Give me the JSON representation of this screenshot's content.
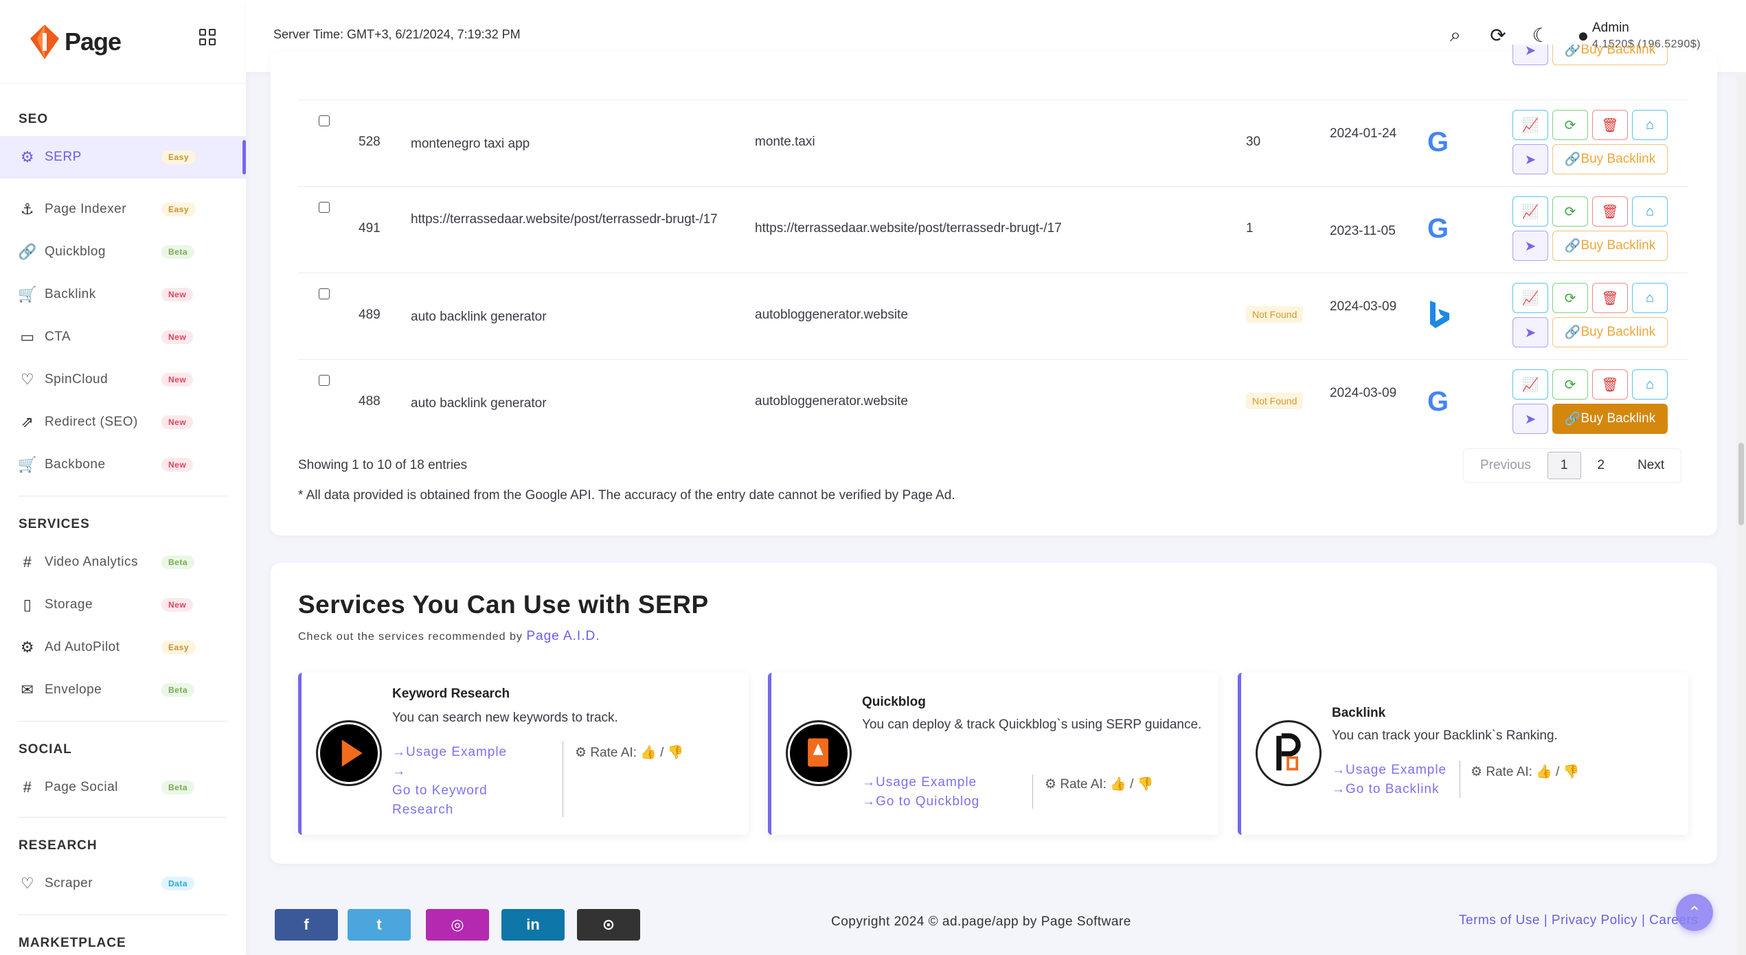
{
  "brand": {
    "name": "Page"
  },
  "header": {
    "server_time": "Server Time: GMT+3, 6/21/2024, 7:19:32 PM",
    "user": "Admin",
    "balance": "4.1520$ (196.5290$)"
  },
  "sidebar": {
    "seo_title": "SEO",
    "seo": [
      {
        "label": "SERP",
        "badge": "Easy"
      },
      {
        "label": "Page Indexer",
        "badge": "Easy"
      },
      {
        "label": "Quickblog",
        "badge": "Beta"
      },
      {
        "label": "Backlink",
        "badge": "New"
      },
      {
        "label": "CTA",
        "badge": "New"
      },
      {
        "label": "SpinCloud",
        "badge": "New"
      },
      {
        "label": "Redirect (SEO)",
        "badge": "New"
      },
      {
        "label": "Backbone",
        "badge": "New"
      }
    ],
    "services_title": "SERVICES",
    "services": [
      {
        "label": "Video Analytics",
        "badge": "Beta"
      },
      {
        "label": "Storage",
        "badge": "New"
      },
      {
        "label": "Ad AutoPilot",
        "badge": "Easy"
      },
      {
        "label": "Envelope",
        "badge": "Beta"
      }
    ],
    "social_title": "SOCIAL",
    "social": [
      {
        "label": "Page Social",
        "badge": "Beta"
      }
    ],
    "research_title": "RESEARCH",
    "research": [
      {
        "label": "Scraper",
        "badge": "Data"
      }
    ],
    "marketplace_title": "MARKETPLACE"
  },
  "table": {
    "buy_label": "Buy Backlink",
    "top_partial_label": "Buy Backlink",
    "rows": [
      {
        "id": "528",
        "keyword": "montenegro taxi app",
        "domain": "monte.taxi",
        "position": "30",
        "date": "2024-01-24",
        "engine": "google"
      },
      {
        "id": "491",
        "keyword": "https://terrassedaar.website/post/terrassedr-brugt-/17",
        "domain": "https://terrassedaar.website/post/terrassedr-brugt-/17",
        "position": "1",
        "date": "2023-11-05",
        "engine": "google"
      },
      {
        "id": "489",
        "keyword": "auto backlink generator",
        "domain": "autobloggenerator.website",
        "position": "Not Found",
        "date": "2024-03-09",
        "engine": "bing"
      },
      {
        "id": "488",
        "keyword": "auto backlink generator",
        "domain": "autobloggenerator.website",
        "position": "Not Found",
        "date": "2024-03-09",
        "engine": "google"
      }
    ],
    "showing": "Showing 1 to 10 of 18 entries",
    "note": "* All data provided is obtained from the Google API. The accuracy of the entry date cannot be verified by Page Ad.",
    "pager": {
      "prev": "Previous",
      "p1": "1",
      "p2": "2",
      "next": "Next"
    }
  },
  "services_section": {
    "title": "Services You Can Use with SERP",
    "subtitle": "Check out the services recommended by",
    "subtitle_link": "Page A.I.D.",
    "rate_label": "Rate AI:",
    "cards": [
      {
        "title": "Keyword Research",
        "desc": "You can search new keywords to track.",
        "usage": "→Usage Example",
        "goto": "→\nGo to Keyword Research"
      },
      {
        "title": "Quickblog",
        "desc": "You can deploy & track Quickblog`s using SERP guidance.",
        "usage": "→Usage Example",
        "goto": "→Go to Quickblog"
      },
      {
        "title": "Backlink",
        "desc": "You can track your Backlink`s Ranking.",
        "usage": "→Usage Example",
        "goto": "→Go to Backlink"
      }
    ]
  },
  "footer": {
    "copyright": "Copyright 2024 © ad.page/app by Page Software",
    "terms": "Terms of Use",
    "privacy": "Privacy Policy",
    "careers": "Careers",
    "social": [
      {
        "name": "facebook-icon",
        "glyph": "f",
        "color": "#3b5998"
      },
      {
        "name": "twitter-icon",
        "glyph": "t",
        "color": "#4aa6dc"
      },
      {
        "name": "instagram-icon",
        "glyph": "◎",
        "color": "#b32ab0"
      },
      {
        "name": "linkedin-icon",
        "glyph": "in",
        "color": "#0e76a8"
      },
      {
        "name": "github-icon",
        "glyph": "⊙",
        "color": "#333333"
      }
    ]
  }
}
